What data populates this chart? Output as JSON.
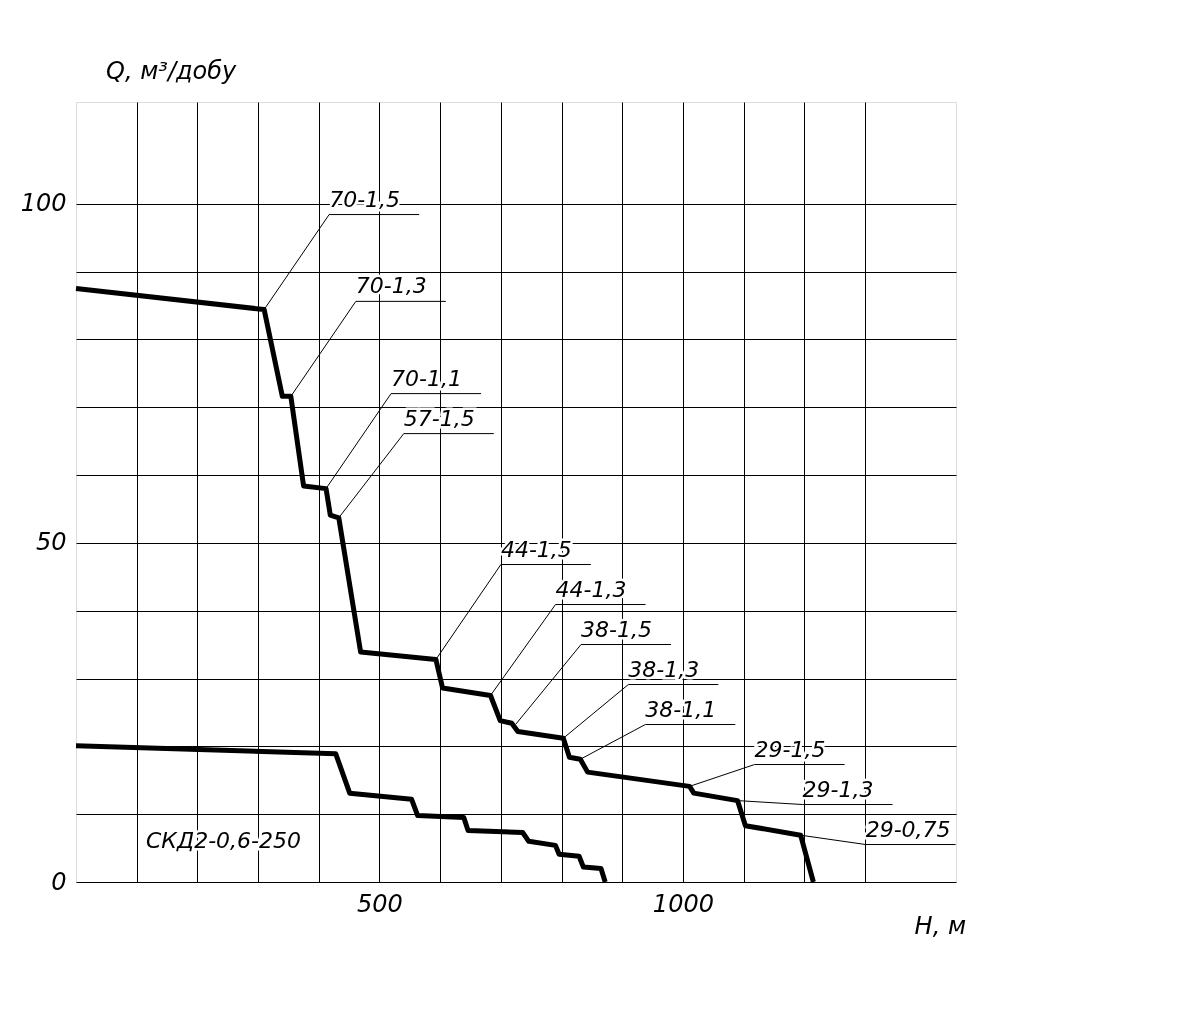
{
  "chart_data": {
    "type": "line",
    "xlabel": "H, м",
    "ylabel": "Q, м³/добу",
    "xlim": [
      0,
      1450
    ],
    "ylim": [
      0,
      115
    ],
    "xticks": [
      {
        "value": 100,
        "label": null
      },
      {
        "value": 200,
        "label": null
      },
      {
        "value": 300,
        "label": null
      },
      {
        "value": 400,
        "label": null
      },
      500,
      {
        "value": 600,
        "label": null
      },
      {
        "value": 700,
        "label": null
      },
      {
        "value": 800,
        "label": null
      },
      {
        "value": 900,
        "label": null
      },
      1000,
      {
        "value": 1100,
        "label": null
      },
      {
        "value": 1200,
        "label": null
      },
      {
        "value": 1300,
        "label": null
      }
    ],
    "yticks": [
      0,
      {
        "value": 10,
        "label": null
      },
      {
        "value": 20,
        "label": null
      },
      {
        "value": 30,
        "label": null
      },
      {
        "value": 40,
        "label": null
      },
      50,
      {
        "value": 60,
        "label": null
      },
      {
        "value": 70,
        "label": null
      },
      {
        "value": 80,
        "label": null
      },
      {
        "value": 90,
        "label": null
      },
      100
    ],
    "grid": true,
    "marker": "none",
    "line_style": "solid",
    "series": [
      {
        "color": "#000000",
        "x": [
          0,
          310,
          340,
          354,
          375,
          412,
          419,
          433,
          469,
          593,
          604,
          683,
          699,
          718,
          728,
          803,
          813,
          831,
          843,
          1011,
          1018,
          1090,
          1103,
          1194,
          1215
        ],
        "values": [
          87.5,
          84.4,
          71.6,
          71.6,
          58.4,
          58.0,
          54.1,
          53.7,
          33.9,
          32.8,
          28.6,
          27.5,
          23.8,
          23.4,
          22.2,
          21.2,
          18.4,
          18.1,
          16.2,
          14.1,
          13.1,
          12.0,
          8.3,
          6.9,
          0
        ]
      },
      {
        "name": "СКД2-0,6-250",
        "color": "#000000",
        "x": [
          0,
          428,
          451,
          553,
          563,
          639,
          646,
          736,
          746,
          790,
          796,
          829,
          836,
          865,
          872
        ],
        "values": [
          20.1,
          18.9,
          13.1,
          12.2,
          9.8,
          9.5,
          7.6,
          7.3,
          6.0,
          5.4,
          4.1,
          3.8,
          2.2,
          2.0,
          0
        ]
      }
    ],
    "annotations": [
      {
        "text": "70-1,5",
        "x": 310,
        "y": 84.4
      },
      {
        "text": "70-1,3",
        "x": 354,
        "y": 71.6
      },
      {
        "text": "70-1,1",
        "x": 412,
        "y": 58.0
      },
      {
        "text": "57-1,5",
        "x": 433,
        "y": 53.7
      },
      {
        "text": "44-1,5",
        "x": 593,
        "y": 32.8
      },
      {
        "text": "44-1,3",
        "x": 683,
        "y": 27.5
      },
      {
        "text": "38-1,5",
        "x": 725,
        "y": 23.3
      },
      {
        "text": "38-1,3",
        "x": 803,
        "y": 21.2
      },
      {
        "text": "38-1,1",
        "x": 831,
        "y": 18.1
      },
      {
        "text": "29-1,5",
        "x": 1011,
        "y": 14.1
      },
      {
        "text": "29-1,3",
        "x": 1090,
        "y": 12.0
      },
      {
        "text": "29-0,75",
        "x": 1194,
        "y": 6.9
      }
    ]
  }
}
